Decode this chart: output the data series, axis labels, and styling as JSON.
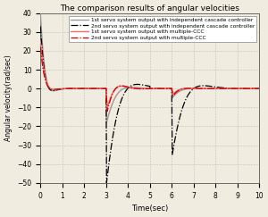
{
  "title": "The comparison results of angular velocities",
  "xlabel": "Time(sec)",
  "ylabel": "Angular velocity(rad/sec)",
  "xlim": [
    0,
    10
  ],
  "ylim": [
    -50,
    40
  ],
  "yticks": [
    -50,
    -40,
    -30,
    -20,
    -10,
    0,
    10,
    20,
    30,
    40
  ],
  "xticks": [
    0,
    1,
    2,
    3,
    4,
    5,
    6,
    7,
    8,
    9,
    10
  ],
  "legend_entries": [
    "1st servo system output with independent cascade controller",
    "2nd servo system output with independent cascade controller",
    "1st servo system output with multiple-CCC",
    "2nd servo system output with multiple-CCC"
  ],
  "line_colors": [
    "#999999",
    "#000000",
    "#ff6666",
    "#cc0000"
  ],
  "bg_color": "#f0ece0",
  "grid_color": "#bbbbbb",
  "title_fontsize": 6.5,
  "label_fontsize": 6.0,
  "tick_fontsize": 5.5,
  "legend_fontsize": 4.2
}
